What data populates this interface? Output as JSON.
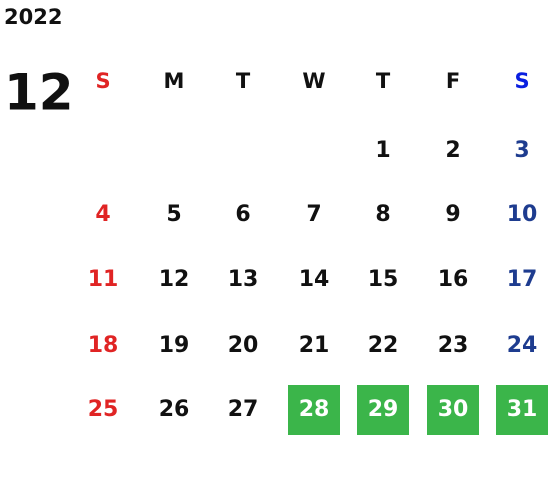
{
  "calendar": {
    "year": "2022",
    "month": "12",
    "weekdays": [
      "S",
      "M",
      "T",
      "W",
      "T",
      "F",
      "S"
    ],
    "weeks": [
      [
        null,
        null,
        null,
        null,
        1,
        2,
        3
      ],
      [
        4,
        5,
        6,
        7,
        8,
        9,
        10
      ],
      [
        11,
        12,
        13,
        14,
        15,
        16,
        17
      ],
      [
        18,
        19,
        20,
        21,
        22,
        23,
        24
      ],
      [
        25,
        26,
        27,
        {
          "day": 28,
          "highlighted": true
        },
        {
          "day": 29,
          "highlighted": true
        },
        {
          "day": 30,
          "highlighted": true
        },
        {
          "day": 31,
          "highlighted": true
        }
      ]
    ],
    "colors": {
      "sunday": "#e02424",
      "saturday_header": "#0a1fe0",
      "saturday": "#1e3c8f",
      "weekday": "#111111",
      "highlight": "#3bb54a",
      "highlight_text": "#ffffff"
    }
  }
}
